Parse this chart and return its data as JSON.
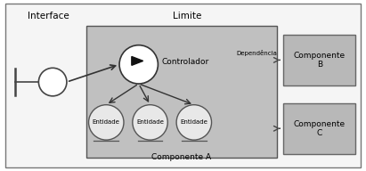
{
  "bg_color": "#ffffff",
  "outer_box_edge": "#888888",
  "inner_box_color": "#b8b8b8",
  "comp_box_color": "#b0b0b0",
  "circle_fill": "#ffffff",
  "entity_fill": "#e0e0e0",
  "text_color": "#000000",
  "title_limite": "Limite",
  "title_interface": "Interface",
  "label_controlador": "Controlador",
  "label_componente_a": "Componente A",
  "label_entidade": "Entidade",
  "label_componente_b": "Componente\nB",
  "label_componente_c": "Componente\nC",
  "label_dependencia": "Dependência",
  "font_size_main": 7.5,
  "font_size_label": 6.5,
  "font_size_entity": 5.0
}
